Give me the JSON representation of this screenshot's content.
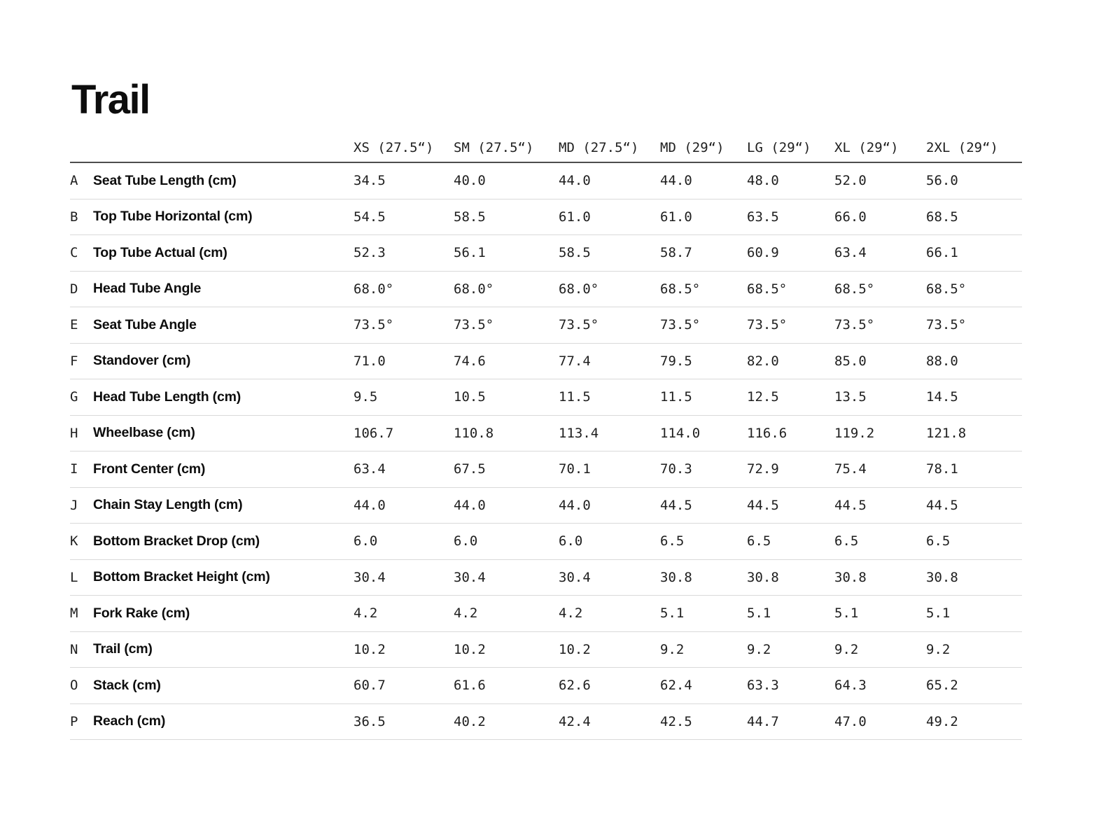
{
  "page": {
    "title": "Trail"
  },
  "table": {
    "size_headers": [
      "XS (27.5“)",
      "SM (27.5“)",
      "MD (27.5“)",
      "MD (29“)",
      "LG (29“)",
      "XL (29“)",
      "2XL (29“)"
    ],
    "rows": [
      {
        "letter": "A",
        "label": "Seat Tube Length (cm)",
        "values": [
          "34.5",
          "40.0",
          "44.0",
          "44.0",
          "48.0",
          "52.0",
          "56.0"
        ]
      },
      {
        "letter": "B",
        "label": "Top Tube Horizontal (cm)",
        "values": [
          "54.5",
          "58.5",
          "61.0",
          "61.0",
          "63.5",
          "66.0",
          "68.5"
        ]
      },
      {
        "letter": "C",
        "label": "Top Tube Actual (cm)",
        "values": [
          "52.3",
          "56.1",
          "58.5",
          "58.7",
          "60.9",
          "63.4",
          "66.1"
        ]
      },
      {
        "letter": "D",
        "label": "Head Tube Angle",
        "values": [
          "68.0°",
          "68.0°",
          "68.0°",
          "68.5°",
          "68.5°",
          "68.5°",
          "68.5°"
        ]
      },
      {
        "letter": "E",
        "label": "Seat Tube Angle",
        "values": [
          "73.5°",
          "73.5°",
          "73.5°",
          "73.5°",
          "73.5°",
          "73.5°",
          "73.5°"
        ]
      },
      {
        "letter": "F",
        "label": "Standover (cm)",
        "values": [
          "71.0",
          "74.6",
          "77.4",
          "79.5",
          "82.0",
          "85.0",
          "88.0"
        ]
      },
      {
        "letter": "G",
        "label": "Head Tube Length (cm)",
        "values": [
          "9.5",
          "10.5",
          "11.5",
          "11.5",
          "12.5",
          "13.5",
          "14.5"
        ]
      },
      {
        "letter": "H",
        "label": "Wheelbase (cm)",
        "values": [
          "106.7",
          "110.8",
          "113.4",
          "114.0",
          "116.6",
          "119.2",
          "121.8"
        ]
      },
      {
        "letter": "I",
        "label": "Front Center (cm)",
        "values": [
          "63.4",
          "67.5",
          "70.1",
          "70.3",
          "72.9",
          "75.4",
          "78.1"
        ]
      },
      {
        "letter": "J",
        "label": "Chain Stay Length (cm)",
        "values": [
          "44.0",
          "44.0",
          "44.0",
          "44.5",
          "44.5",
          "44.5",
          "44.5"
        ]
      },
      {
        "letter": "K",
        "label": "Bottom Bracket Drop (cm)",
        "values": [
          "6.0",
          "6.0",
          "6.0",
          "6.5",
          "6.5",
          "6.5",
          "6.5"
        ]
      },
      {
        "letter": "L",
        "label": "Bottom Bracket Height (cm)",
        "values": [
          "30.4",
          "30.4",
          "30.4",
          "30.8",
          "30.8",
          "30.8",
          "30.8"
        ]
      },
      {
        "letter": "M",
        "label": "Fork Rake (cm)",
        "values": [
          "4.2",
          "4.2",
          "4.2",
          "5.1",
          "5.1",
          "5.1",
          "5.1"
        ]
      },
      {
        "letter": "N",
        "label": "Trail (cm)",
        "values": [
          "10.2",
          "10.2",
          "10.2",
          "9.2",
          "9.2",
          "9.2",
          "9.2"
        ]
      },
      {
        "letter": "O",
        "label": "Stack (cm)",
        "values": [
          "60.7",
          "61.6",
          "62.6",
          "62.4",
          "63.3",
          "64.3",
          "65.2"
        ]
      },
      {
        "letter": "P",
        "label": "Reach (cm)",
        "values": [
          "36.5",
          "40.2",
          "42.4",
          "42.5",
          "44.7",
          "47.0",
          "49.2"
        ]
      }
    ]
  }
}
